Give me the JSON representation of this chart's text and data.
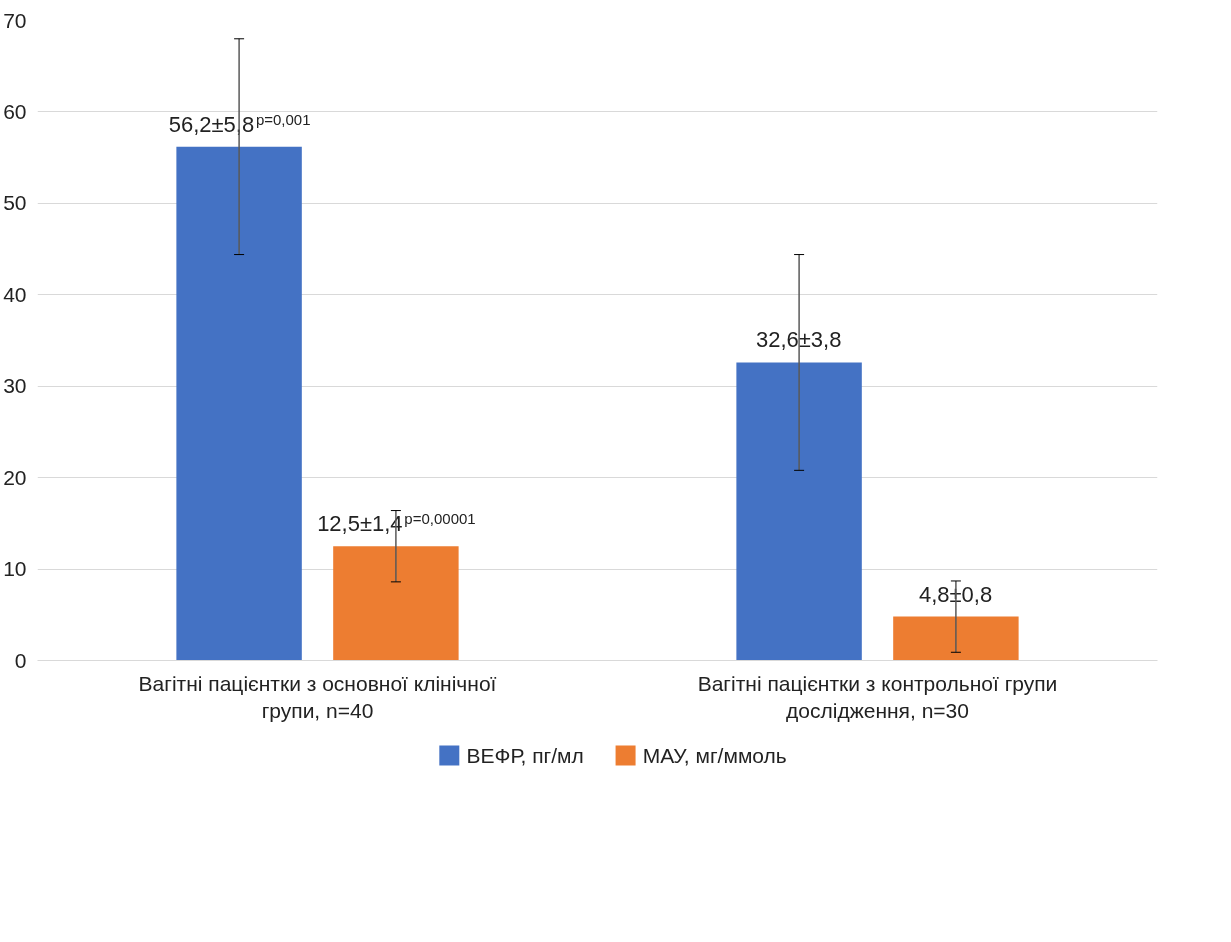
{
  "chart_data": {
    "type": "bar",
    "categories": [
      "Вагітні пацієнтки з основної клінічної групи, n=40",
      "Вагітні пацієнтки з контрольної групи дослідження, n=30"
    ],
    "series": [
      {
        "name": "ВЕФР, пг/мл",
        "color": "#4472c4",
        "values": [
          56.2,
          32.6
        ],
        "errors": [
          11.8,
          11.8
        ],
        "value_labels": [
          "56,2±5,8$^{p=0,001}$",
          "32,6±3,8"
        ]
      },
      {
        "name": "МАУ, мг/ммоль",
        "color": "#ed7d31",
        "values": [
          12.5,
          4.8
        ],
        "errors": [
          3.9,
          3.9
        ],
        "value_labels": [
          "12,5±1,4$^{p=0,00001}$",
          "4,8±0,8"
        ]
      }
    ],
    "ylim": [
      0,
      70
    ],
    "yticks": [
      0,
      10,
      20,
      30,
      40,
      50,
      60,
      70
    ],
    "grid": "y",
    "legend": "bottom"
  }
}
